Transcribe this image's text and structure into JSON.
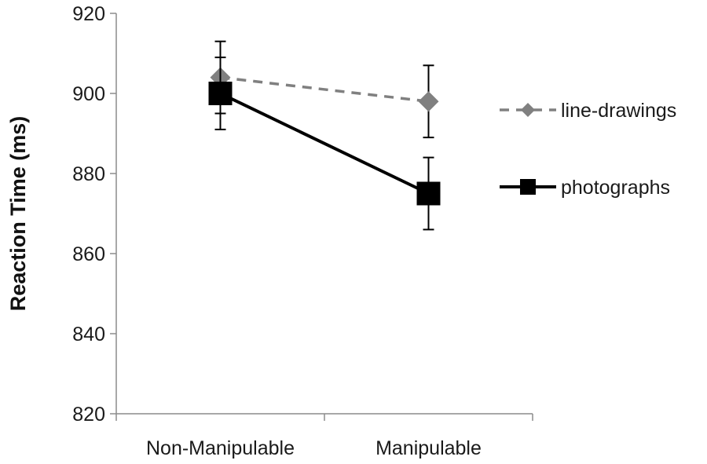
{
  "chart_data": {
    "type": "line",
    "title": "",
    "xlabel": "",
    "ylabel": "Reaction Time  (ms)",
    "ylim": [
      820,
      920
    ],
    "yticks": [
      820,
      840,
      860,
      880,
      900,
      920
    ],
    "categories": [
      "Non-Manipulable",
      "Manipulable"
    ],
    "grid": false,
    "legend_position": "right",
    "series": [
      {
        "name": "line-drawings",
        "values": [
          904,
          898
        ],
        "error": [
          9,
          9
        ],
        "color": "#808080",
        "line_style": "dashed",
        "marker": "diamond"
      },
      {
        "name": "photographs",
        "values": [
          900,
          875
        ],
        "error": [
          9,
          9
        ],
        "color": "#000000",
        "line_style": "solid",
        "marker": "square"
      }
    ]
  }
}
